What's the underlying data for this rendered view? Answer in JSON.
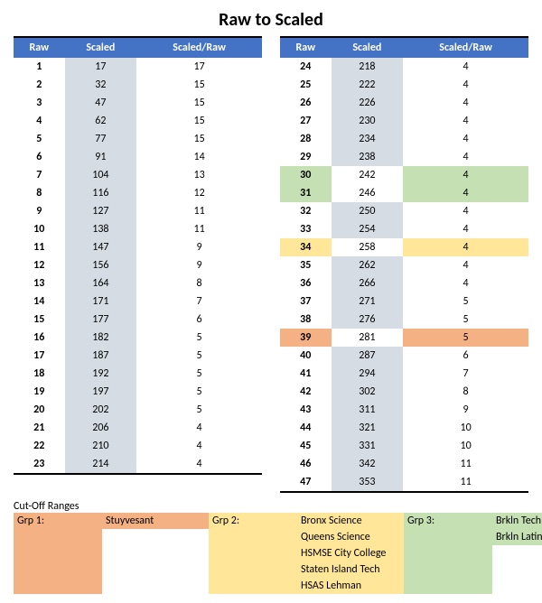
{
  "title": "Raw to Scaled",
  "headers": {
    "raw": "Raw",
    "scaled": "Scaled",
    "ratio": "Scaled/Raw"
  },
  "colors": {
    "header_bg": "#4472c4",
    "header_fg": "#ffffff",
    "scaled_col_bg": "#d6dce4",
    "hl_orange": "#f4b183",
    "hl_yellow": "#ffe699",
    "hl_green": "#c5e0b3",
    "border": "#000000",
    "background": "#ffffff"
  },
  "typography": {
    "title_fontsize": 20,
    "body_fontsize": 12,
    "font_family": "Calibri"
  },
  "rows_left": [
    {
      "raw": 1,
      "scaled": 17,
      "ratio": 17,
      "hl": null
    },
    {
      "raw": 2,
      "scaled": 32,
      "ratio": 15,
      "hl": null
    },
    {
      "raw": 3,
      "scaled": 47,
      "ratio": 15,
      "hl": null
    },
    {
      "raw": 4,
      "scaled": 62,
      "ratio": 15,
      "hl": null
    },
    {
      "raw": 5,
      "scaled": 77,
      "ratio": 15,
      "hl": null
    },
    {
      "raw": 6,
      "scaled": 91,
      "ratio": 14,
      "hl": null
    },
    {
      "raw": 7,
      "scaled": 104,
      "ratio": 13,
      "hl": null
    },
    {
      "raw": 8,
      "scaled": 116,
      "ratio": 12,
      "hl": null
    },
    {
      "raw": 9,
      "scaled": 127,
      "ratio": 11,
      "hl": null
    },
    {
      "raw": 10,
      "scaled": 138,
      "ratio": 11,
      "hl": null
    },
    {
      "raw": 11,
      "scaled": 147,
      "ratio": 9,
      "hl": null
    },
    {
      "raw": 12,
      "scaled": 156,
      "ratio": 9,
      "hl": null
    },
    {
      "raw": 13,
      "scaled": 164,
      "ratio": 8,
      "hl": null
    },
    {
      "raw": 14,
      "scaled": 171,
      "ratio": 7,
      "hl": null
    },
    {
      "raw": 15,
      "scaled": 177,
      "ratio": 6,
      "hl": null
    },
    {
      "raw": 16,
      "scaled": 182,
      "ratio": 5,
      "hl": null
    },
    {
      "raw": 17,
      "scaled": 187,
      "ratio": 5,
      "hl": null
    },
    {
      "raw": 18,
      "scaled": 192,
      "ratio": 5,
      "hl": null
    },
    {
      "raw": 19,
      "scaled": 197,
      "ratio": 5,
      "hl": null
    },
    {
      "raw": 20,
      "scaled": 202,
      "ratio": 5,
      "hl": null
    },
    {
      "raw": 21,
      "scaled": 206,
      "ratio": 4,
      "hl": null
    },
    {
      "raw": 22,
      "scaled": 210,
      "ratio": 4,
      "hl": null
    },
    {
      "raw": 23,
      "scaled": 214,
      "ratio": 4,
      "hl": null
    }
  ],
  "rows_right": [
    {
      "raw": 24,
      "scaled": 218,
      "ratio": 4,
      "hl": null
    },
    {
      "raw": 25,
      "scaled": 222,
      "ratio": 4,
      "hl": null
    },
    {
      "raw": 26,
      "scaled": 226,
      "ratio": 4,
      "hl": null
    },
    {
      "raw": 27,
      "scaled": 230,
      "ratio": 4,
      "hl": null
    },
    {
      "raw": 28,
      "scaled": 234,
      "ratio": 4,
      "hl": null
    },
    {
      "raw": 29,
      "scaled": 238,
      "ratio": 4,
      "hl": null
    },
    {
      "raw": 30,
      "scaled": 242,
      "ratio": 4,
      "hl": "green"
    },
    {
      "raw": 31,
      "scaled": 246,
      "ratio": 4,
      "hl": "green"
    },
    {
      "raw": 32,
      "scaled": 250,
      "ratio": 4,
      "hl": null
    },
    {
      "raw": 33,
      "scaled": 254,
      "ratio": 4,
      "hl": null
    },
    {
      "raw": 34,
      "scaled": 258,
      "ratio": 4,
      "hl": "yellow"
    },
    {
      "raw": 35,
      "scaled": 262,
      "ratio": 4,
      "hl": null
    },
    {
      "raw": 36,
      "scaled": 266,
      "ratio": 4,
      "hl": null
    },
    {
      "raw": 37,
      "scaled": 271,
      "ratio": 5,
      "hl": null
    },
    {
      "raw": 38,
      "scaled": 276,
      "ratio": 5,
      "hl": null
    },
    {
      "raw": 39,
      "scaled": 281,
      "ratio": 5,
      "hl": "orange"
    },
    {
      "raw": 40,
      "scaled": 287,
      "ratio": 6,
      "hl": null
    },
    {
      "raw": 41,
      "scaled": 294,
      "ratio": 7,
      "hl": null
    },
    {
      "raw": 42,
      "scaled": 302,
      "ratio": 8,
      "hl": null
    },
    {
      "raw": 43,
      "scaled": 311,
      "ratio": 9,
      "hl": null
    },
    {
      "raw": 44,
      "scaled": 321,
      "ratio": 10,
      "hl": null
    },
    {
      "raw": 45,
      "scaled": 331,
      "ratio": 10,
      "hl": null
    },
    {
      "raw": 46,
      "scaled": 342,
      "ratio": 11,
      "hl": null
    },
    {
      "raw": 47,
      "scaled": 353,
      "ratio": 11,
      "hl": null
    }
  ],
  "cutoff_label": "Cut-Off Ranges",
  "legend": {
    "g1": {
      "label": "Grp 1:",
      "schools": [
        "Stuyvesant"
      ]
    },
    "g2": {
      "label": "Grp 2:",
      "schools": [
        "Bronx Science",
        "Queens Science",
        "HSMSE City College",
        "Staten Island Tech",
        "HSAS Lehman"
      ]
    },
    "g3": {
      "label": "Grp 3:",
      "schools": [
        "Brkln Tech",
        "Brkln Latin"
      ]
    }
  }
}
